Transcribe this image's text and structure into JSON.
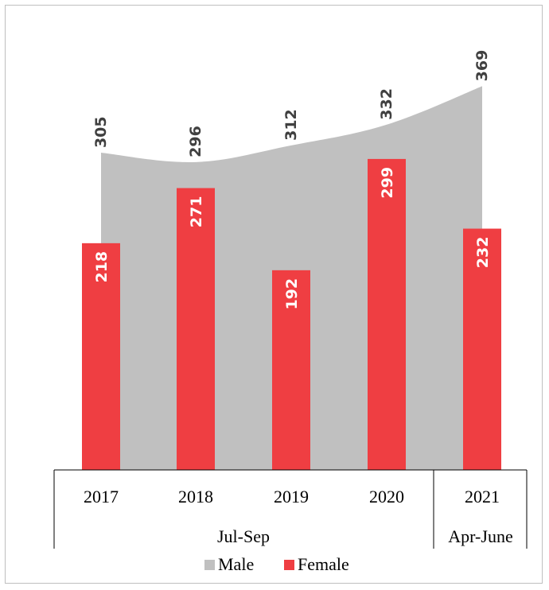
{
  "chart_data": {
    "type": "bar",
    "categories": [
      "2017",
      "2018",
      "2019",
      "2020",
      "2021"
    ],
    "groups": [
      {
        "label": "Jul-Sep",
        "categories": [
          "2017",
          "2018",
          "2019",
          "2020"
        ]
      },
      {
        "label": "Apr-June",
        "categories": [
          "2021"
        ]
      }
    ],
    "series": [
      {
        "name": "Male",
        "type": "area",
        "color": "#c0c0c0",
        "values": [
          305,
          296,
          312,
          332,
          369
        ]
      },
      {
        "name": "Female",
        "type": "bar",
        "color": "#ef3e42",
        "values": [
          218,
          271,
          192,
          299,
          232
        ]
      }
    ],
    "ylim": [
      0,
      400
    ],
    "grid": false,
    "legend_position": "bottom"
  }
}
